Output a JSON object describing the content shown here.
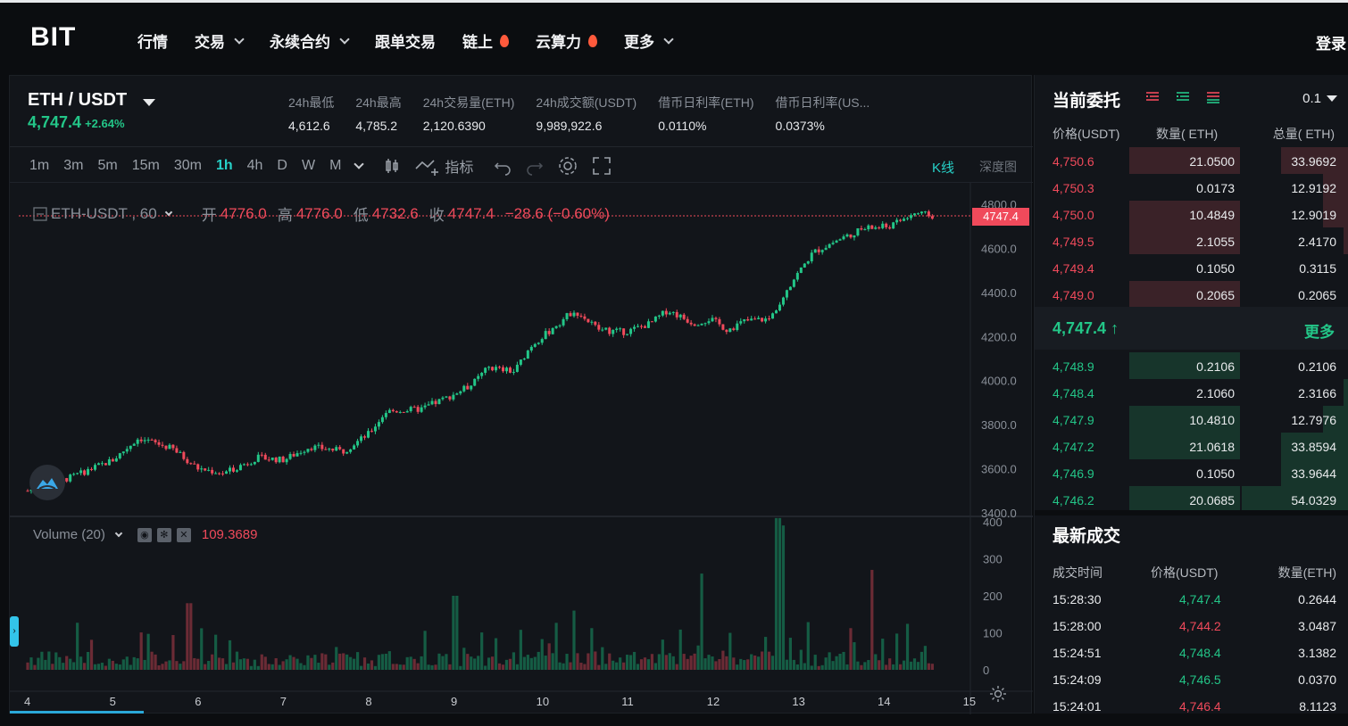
{
  "header": {
    "logo": "BIT",
    "nav": [
      {
        "label": "行情",
        "dropdown": false,
        "hot": false
      },
      {
        "label": "交易",
        "dropdown": true,
        "hot": false
      },
      {
        "label": "永续合约",
        "dropdown": true,
        "hot": false
      },
      {
        "label": "跟单交易",
        "dropdown": false,
        "hot": false
      },
      {
        "label": "链上",
        "dropdown": false,
        "hot": true
      },
      {
        "label": "云算力",
        "dropdown": false,
        "hot": true
      },
      {
        "label": "更多",
        "dropdown": true,
        "hot": false
      }
    ],
    "login": "登录"
  },
  "ticker": {
    "pair": "ETH / USDT",
    "last_price": "4,747.4",
    "change_pct": "+2.64%",
    "stats": [
      {
        "label": "24h最低",
        "value": "4,612.6"
      },
      {
        "label": "24h最高",
        "value": "4,785.2"
      },
      {
        "label": "24h交易量(ETH)",
        "value": "2,120.6390"
      },
      {
        "label": "24h成交额(USDT)",
        "value": "9,989,922.6"
      },
      {
        "label": "借币日利率(ETH)",
        "value": "0.0110%"
      },
      {
        "label": "借币日利率(US...",
        "value": "0.0373%"
      }
    ]
  },
  "toolbar": {
    "timeframes": [
      "1m",
      "3m",
      "5m",
      "15m",
      "30m",
      "1h",
      "4h",
      "D",
      "W",
      "M"
    ],
    "active_timeframe": "1h",
    "indicators_label": "指标",
    "view_kline": "K线",
    "view_depth": "深度图"
  },
  "legend": {
    "symbol": "ETH-USDT , 60",
    "open_label": "开",
    "open": "4776.0",
    "high_label": "高",
    "high": "4776.0",
    "low_label": "低",
    "low": "4732.6",
    "close_label": "收",
    "close": "4747.4",
    "change": "−28.6 (−0.60%)"
  },
  "volume_legend": {
    "label": "Volume (20)",
    "value": "109.3689"
  },
  "colors": {
    "up": "#23c688",
    "down": "#f04a5b",
    "accent": "#27d1c8"
  },
  "chart_data": {
    "type": "candlestick",
    "price_axis_ticks": [
      4800.0,
      4600.0,
      4400.0,
      4200.0,
      4000.0,
      3800.0,
      3600.0,
      3400.0
    ],
    "price_axis_labels": [
      "4800.0",
      "4600.0",
      "4400.0",
      "4200.0",
      "4000.0",
      "3800.0",
      "3600.0",
      "3400.0"
    ],
    "volume_axis_labels": [
      "400",
      "300",
      "200",
      "100",
      "0"
    ],
    "volume_ticks": [
      400,
      300,
      200,
      100,
      0
    ],
    "x_labels": [
      "4",
      "5",
      "6",
      "7",
      "8",
      "9",
      "10",
      "11",
      "12",
      "13",
      "14",
      "15"
    ],
    "current_price": 4747.4,
    "current_price_label": "4747.4",
    "close_path_by_day": [
      [
        4,
        3500
      ],
      [
        4.5,
        3560
      ],
      [
        5,
        3640
      ],
      [
        5.3,
        3740
      ],
      [
        5.7,
        3690
      ],
      [
        6,
        3600
      ],
      [
        6.3,
        3580
      ],
      [
        6.7,
        3650
      ],
      [
        7,
        3640
      ],
      [
        7.3,
        3700
      ],
      [
        7.7,
        3680
      ],
      [
        8,
        3760
      ],
      [
        8.2,
        3860
      ],
      [
        8.6,
        3870
      ],
      [
        8.9,
        3920
      ],
      [
        9.2,
        3980
      ],
      [
        9.4,
        4060
      ],
      [
        9.7,
        4040
      ],
      [
        9.9,
        4160
      ],
      [
        10.1,
        4220
      ],
      [
        10.4,
        4320
      ],
      [
        10.7,
        4230
      ],
      [
        11,
        4220
      ],
      [
        11.3,
        4260
      ],
      [
        11.5,
        4320
      ],
      [
        11.8,
        4260
      ],
      [
        12,
        4280
      ],
      [
        12.2,
        4230
      ],
      [
        12.4,
        4270
      ],
      [
        12.7,
        4280
      ],
      [
        12.9,
        4420
      ],
      [
        13.2,
        4580
      ],
      [
        13.5,
        4640
      ],
      [
        13.8,
        4690
      ],
      [
        14.1,
        4700
      ],
      [
        14.4,
        4760
      ],
      [
        14.6,
        4747
      ]
    ],
    "volume_spikes": [
      [
        12.8,
        410
      ],
      [
        12.85,
        390
      ],
      [
        11.9,
        260
      ],
      [
        13.9,
        270
      ],
      [
        10.4,
        160
      ],
      [
        9,
        200
      ],
      [
        5.9,
        180
      ]
    ]
  },
  "orderbook": {
    "title": "当前委托",
    "precision": "0.1",
    "headers": {
      "price": "价格(USDT)",
      "qty": "数量( ETH)",
      "total": "总量( ETH)"
    },
    "asks": [
      {
        "price": "4,750.6",
        "qty": "21.0500",
        "total": "33.9692",
        "qty_frac": 1.0,
        "total_frac": 0.63
      },
      {
        "price": "4,750.3",
        "qty": "0.0173",
        "total": "12.9192",
        "qty_frac": 0,
        "total_frac": 0.24
      },
      {
        "price": "4,750.0",
        "qty": "10.4849",
        "total": "12.9019",
        "qty_frac": 1.0,
        "total_frac": 0.24
      },
      {
        "price": "4,749.5",
        "qty": "2.1055",
        "total": "2.4170",
        "qty_frac": 1.0,
        "total_frac": 0.04
      },
      {
        "price": "4,749.4",
        "qty": "0.1050",
        "total": "0.3115",
        "qty_frac": 0,
        "total_frac": 0.0
      },
      {
        "price": "4,749.0",
        "qty": "0.2065",
        "total": "0.2065",
        "qty_frac": 1.0,
        "total_frac": 0.0
      }
    ],
    "mid_price": "4,747.4",
    "mid_arrow": "↑",
    "more": "更多",
    "bids": [
      {
        "price": "4,748.9",
        "qty": "0.2106",
        "total": "0.2106",
        "qty_frac": 1.0,
        "total_frac": 0.0
      },
      {
        "price": "4,748.4",
        "qty": "2.1060",
        "total": "2.3166",
        "qty_frac": 0,
        "total_frac": 0.04
      },
      {
        "price": "4,747.9",
        "qty": "10.4810",
        "total": "12.7976",
        "qty_frac": 1.0,
        "total_frac": 0.24
      },
      {
        "price": "4,747.2",
        "qty": "21.0618",
        "total": "33.8594",
        "qty_frac": 1.0,
        "total_frac": 0.63
      },
      {
        "price": "4,746.9",
        "qty": "0.1050",
        "total": "33.9644",
        "qty_frac": 0,
        "total_frac": 0.63
      },
      {
        "price": "4,746.2",
        "qty": "20.0685",
        "total": "54.0329",
        "qty_frac": 1.0,
        "total_frac": 1.0
      }
    ]
  },
  "trades": {
    "title": "最新成交",
    "headers": {
      "time": "成交时间",
      "price": "价格(USDT)",
      "qty": "数量(ETH)"
    },
    "rows": [
      {
        "time": "15:28:30",
        "price": "4,747.4",
        "qty": "0.2644",
        "side": "up"
      },
      {
        "time": "15:28:00",
        "price": "4,744.2",
        "qty": "3.0487",
        "side": "down"
      },
      {
        "time": "15:24:51",
        "price": "4,748.4",
        "qty": "3.1382",
        "side": "up"
      },
      {
        "time": "15:24:09",
        "price": "4,746.5",
        "qty": "0.0370",
        "side": "up"
      },
      {
        "time": "15:24:01",
        "price": "4,746.4",
        "qty": "8.1123",
        "side": "down"
      }
    ]
  }
}
